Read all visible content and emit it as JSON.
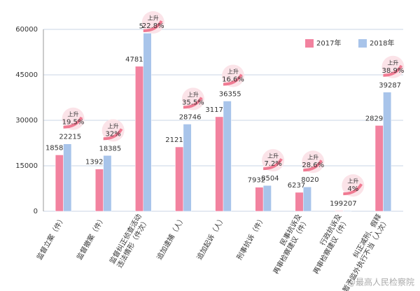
{
  "chart_data": {
    "type": "bar",
    "categories": [
      [
        "监督立案（件）"
      ],
      [
        "监督撤案（件）"
      ],
      [
        "监督纠正侦查活动",
        "违法情形（件次）"
      ],
      [
        "追加逮捕（人）"
      ],
      [
        "追加起诉（人）"
      ],
      [
        "刑事抗诉（件）"
      ],
      [
        "民事抗诉及",
        "再审检察建议（件）"
      ],
      [
        "行政抗诉及",
        "再审检察建议（件）"
      ],
      [
        "纠正减刑、假释",
        "暂予监外执行不当（人次）"
      ]
    ],
    "series": [
      {
        "name": "2017年",
        "color": "#f2829f",
        "values": [
          18587,
          13924,
          47818,
          21218,
          31172,
          7932,
          6237,
          199,
          28290
        ]
      },
      {
        "name": "2018年",
        "color": "#a8c4ea",
        "values": [
          22215,
          18385,
          58744,
          28746,
          36355,
          8504,
          8020,
          207,
          39287
        ]
      }
    ],
    "annotations": [
      {
        "label": "上升",
        "value": "19.5%"
      },
      {
        "label": "上升",
        "value": "32%"
      },
      {
        "label": "上升",
        "value": "22.8%"
      },
      {
        "label": "上升",
        "value": "35.5%"
      },
      {
        "label": "上升",
        "value": "16.6%"
      },
      {
        "label": "上升",
        "value": "7.2%"
      },
      {
        "label": "上升",
        "value": "28.6%"
      },
      {
        "label": "上升",
        "value": "4%"
      },
      {
        "label": "上升",
        "value": "38.9%"
      }
    ],
    "ylim": [
      0,
      60000
    ],
    "yticks": [
      0,
      15000,
      30000,
      45000,
      60000
    ],
    "grid": true,
    "legend": "top-right",
    "watermark": "@最高人民检察院"
  }
}
